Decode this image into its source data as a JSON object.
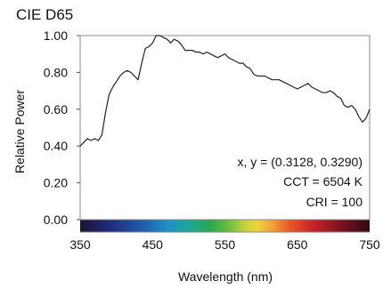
{
  "chart_data": {
    "type": "line",
    "title": "CIE D65",
    "xlabel": "Wavelength (nm)",
    "ylabel": "Relative Power",
    "xlim": [
      350,
      750
    ],
    "ylim": [
      0,
      1
    ],
    "xticks": [
      350,
      450,
      550,
      650,
      750
    ],
    "xtick_labels": [
      "350",
      "450",
      "550",
      "650",
      "750"
    ],
    "yticks": [
      0,
      0.2,
      0.4,
      0.6,
      0.8,
      1.0
    ],
    "ytick_labels": [
      "0.00",
      "0.20",
      "0.40",
      "0.60",
      "0.80",
      "1.00"
    ],
    "grid": false,
    "spectrum_bar": true,
    "annotations": [
      "x, y = (0.3128, 0.3290)",
      "CCT = 6504 K",
      "CRI = 100"
    ],
    "series": [
      {
        "color": "#222222",
        "x": [
          350,
          355,
          360,
          365,
          370,
          375,
          380,
          385,
          390,
          395,
          400,
          405,
          410,
          415,
          420,
          425,
          430,
          435,
          440,
          445,
          450,
          455,
          460,
          465,
          470,
          475,
          480,
          485,
          490,
          495,
          500,
          505,
          510,
          515,
          520,
          525,
          530,
          535,
          540,
          545,
          550,
          555,
          560,
          565,
          570,
          575,
          580,
          585,
          590,
          595,
          600,
          605,
          610,
          615,
          620,
          625,
          630,
          635,
          640,
          645,
          650,
          655,
          660,
          665,
          670,
          675,
          680,
          685,
          690,
          695,
          700,
          705,
          710,
          715,
          720,
          725,
          730,
          735,
          740,
          745,
          750
        ],
        "values": [
          0.4,
          0.42,
          0.44,
          0.43,
          0.44,
          0.43,
          0.46,
          0.58,
          0.68,
          0.72,
          0.75,
          0.78,
          0.8,
          0.81,
          0.8,
          0.78,
          0.76,
          0.85,
          0.93,
          0.94,
          0.96,
          1.0,
          1.0,
          0.99,
          0.98,
          0.96,
          0.98,
          0.97,
          0.95,
          0.92,
          0.92,
          0.92,
          0.91,
          0.91,
          0.9,
          0.91,
          0.9,
          0.89,
          0.88,
          0.89,
          0.9,
          0.88,
          0.87,
          0.86,
          0.85,
          0.85,
          0.83,
          0.82,
          0.79,
          0.78,
          0.78,
          0.78,
          0.77,
          0.76,
          0.76,
          0.76,
          0.75,
          0.74,
          0.73,
          0.72,
          0.71,
          0.72,
          0.73,
          0.74,
          0.72,
          0.71,
          0.7,
          0.69,
          0.69,
          0.7,
          0.69,
          0.67,
          0.66,
          0.62,
          0.61,
          0.62,
          0.6,
          0.56,
          0.53,
          0.55,
          0.6
        ]
      }
    ]
  }
}
